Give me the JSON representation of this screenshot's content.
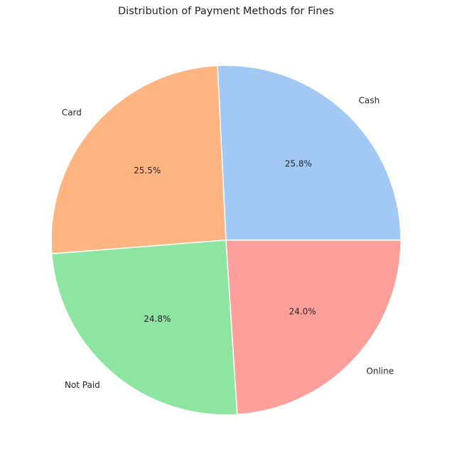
{
  "chart_data": {
    "type": "pie",
    "title": "Distribution of Payment Methods for Fines",
    "slices": [
      {
        "label": "Cash",
        "percent_label": "25.8%",
        "value": 25.8,
        "color": "#a1c9f4"
      },
      {
        "label": "Card",
        "percent_label": "25.5%",
        "value": 25.5,
        "color": "#ffb482"
      },
      {
        "label": "Not Paid",
        "percent_label": "24.8%",
        "value": 24.8,
        "color": "#8de5a1"
      },
      {
        "label": "Online",
        "percent_label": "24.0%",
        "value": 24.0,
        "color": "#ff9f9b"
      }
    ],
    "start_angle_deg": 0,
    "direction": "counterclockwise",
    "edge_color": "#ffffff"
  }
}
